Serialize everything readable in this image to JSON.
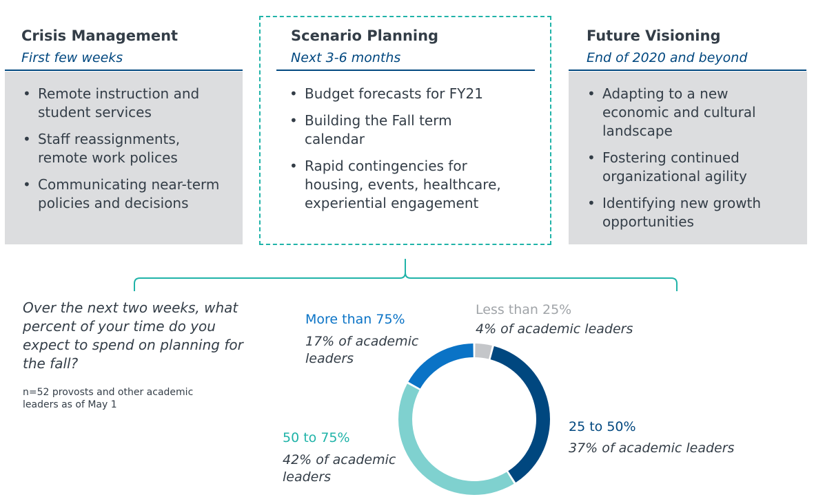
{
  "columns": [
    {
      "title": "Crisis Management",
      "subtitle": "First few weeks",
      "bullets": [
        "Remote instruction and student services",
        "Staff reassignments, remote work polices",
        "Communicating near-term policies and decisions"
      ]
    },
    {
      "title": "Scenario Planning",
      "subtitle": "Next 3-6 months",
      "bullets": [
        "Budget forecasts for FY21",
        "Building the Fall term calendar",
        "Rapid contingencies for housing, events, healthcare, experiential engagement"
      ]
    },
    {
      "title": "Future Visioning",
      "subtitle": "End of 2020 and beyond",
      "bullets": [
        "Adapting to a new economic and cultural landscape",
        "Fostering continued organizational agility",
        "Identifying new growth opportunities"
      ]
    }
  ],
  "question": "Over the next two weeks, what percent of your time do you expect to spend on planning for the fall?",
  "note": "n=52 provosts and other academic leaders as of May 1",
  "colors": {
    "title": "#333d47",
    "subtitle": "#00477f",
    "grey_box": "#dcdddf",
    "dashed": "#1fb3a8",
    "brace": "#1fb3a8"
  },
  "chart_data": {
    "type": "pie",
    "donut": true,
    "unit": "% of academic leaders",
    "slices": [
      {
        "label": "Less than 25%",
        "value": 4,
        "value_text": "4% of academic leaders",
        "color": "#c4c6c9"
      },
      {
        "label": "25 to 50%",
        "value": 37,
        "value_text": "37% of academic leaders",
        "color": "#00477f"
      },
      {
        "label": "50 to 75%",
        "value": 42,
        "value_text": "42% of academic leaders",
        "color": "#7fd1cf"
      },
      {
        "label": "More than 75%",
        "value": 17,
        "value_text": "17% of academic leaders",
        "color": "#0a73c6"
      }
    ]
  }
}
